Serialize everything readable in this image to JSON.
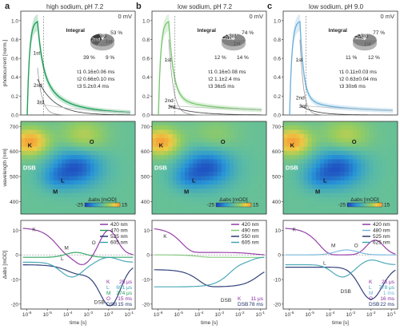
{
  "colors": {
    "green": "#1f9e58",
    "lightgreen": "#7dc873",
    "lightblue": "#6fb2dc",
    "purple": "#8a2aa0",
    "navy": "#1d2f6b",
    "teal": "#3aa0b0",
    "grey": "#606060"
  },
  "chart_data": [
    {
      "panel": "a",
      "title": "high sodium, pH 7.2",
      "voltage": "0 mV",
      "theme": "green",
      "top": {
        "type": "line",
        "ylabel": "photocurrent [norm.]",
        "yticks": [
          "0.0",
          "0.2",
          "0.4",
          "0.6",
          "0.8",
          "1.0"
        ],
        "ylim": [
          0,
          1.1
        ],
        "phase_labels": [
          "1st",
          "2nd",
          "3rd"
        ],
        "pie": {
          "title": "Integral",
          "values": [
            53,
            39,
            9
          ],
          "labels": [
            "1st",
            "2nd",
            "3rd"
          ],
          "value_labels": [
            "53 %",
            "39 %",
            "9 %"
          ],
          "colors": [
            "#8c8c8c",
            "#3c3c3c",
            "#d8d8d8"
          ]
        },
        "taus": [
          "τ1  0.16±0.06 ms",
          "τ2  0.66±0.10 ms",
          "τ3  5.2±0.4 ms"
        ]
      },
      "map": {
        "type": "heatmap",
        "ylabel": "wavelength [nm]",
        "yticks": [
          "400",
          "500",
          "600",
          "700"
        ],
        "ylim": [
          350,
          720
        ],
        "labels": [
          "K",
          "O",
          "DSB",
          "L",
          "M"
        ],
        "colorbar": {
          "label": "Δabs [mOD]",
          "min": "-25",
          "max": "15"
        }
      },
      "traces": {
        "type": "line",
        "xlabel": "time [s]",
        "ylabel": "Δabs [mOD]",
        "yticks": [
          "-20",
          "-10",
          "0",
          "10"
        ],
        "ylim": [
          -22,
          14
        ],
        "xticks": [
          "10-6",
          "10-5",
          "10-4",
          "10-3",
          "10-2",
          "10-1"
        ],
        "legend": [
          {
            "name": "420 nm",
            "color": "#8a2aa0"
          },
          {
            "name": "470 nm",
            "color": "#1f9e58"
          },
          {
            "name": "525 nm",
            "color": "#1d2f6b"
          },
          {
            "name": "605 nm",
            "color": "#3aa0b0"
          }
        ],
        "curve_labels": [
          "K",
          "M",
          "L",
          "O",
          "DSB"
        ],
        "time_constants": [
          {
            "name": "K",
            "value": "25 μs"
          },
          {
            "name": "L",
            "value": "691 μs"
          },
          {
            "name": "M",
            "value": "274 μs"
          },
          {
            "name": "O",
            "value": "15 ms"
          },
          {
            "name": "DSB",
            "value": "15 ms"
          }
        ]
      }
    },
    {
      "panel": "b",
      "title": "low sodium, pH 7.2",
      "voltage": "0 mV",
      "theme": "lightgreen",
      "top": {
        "type": "line",
        "ylabel": "",
        "yticks": [
          "0.0",
          "0.2",
          "0.4",
          "0.6",
          "0.8",
          "1.0"
        ],
        "ylim": [
          0,
          1.1
        ],
        "phase_labels": [
          "1st",
          "2nd",
          "3rd"
        ],
        "pie": {
          "title": "Integral",
          "values": [
            74,
            12,
            14
          ],
          "labels": [
            "1st",
            "2nd",
            "3rd"
          ],
          "value_labels": [
            "74 %",
            "12 %",
            "14 %"
          ],
          "colors": [
            "#8c8c8c",
            "#3c3c3c",
            "#d8d8d8"
          ]
        },
        "taus": [
          "τ1  0.16±0.08 ms",
          "τ2  1.1±2.4 ms",
          "τ3  36±5 ms"
        ]
      },
      "map": {
        "type": "heatmap",
        "ylabel": "",
        "yticks": [
          "400",
          "500",
          "600",
          "700"
        ],
        "ylim": [
          350,
          720
        ],
        "labels": [
          "K",
          "O",
          "DSB",
          "L",
          "M"
        ],
        "colorbar": {
          "label": "Δabs [mOD]",
          "min": "-25",
          "max": "15"
        }
      },
      "traces": {
        "type": "line",
        "xlabel": "time [s]",
        "ylabel": "",
        "yticks": [
          "-20",
          "-10",
          "0",
          "10"
        ],
        "ylim": [
          -22,
          14
        ],
        "xticks": [
          "10-6",
          "10-5",
          "10-4",
          "10-3",
          "10-2",
          "10-1"
        ],
        "legend": [
          {
            "name": "420 nm",
            "color": "#8a2aa0"
          },
          {
            "name": "490 nm",
            "color": "#7dc873"
          },
          {
            "name": "550 nm",
            "color": "#1d2f6b"
          },
          {
            "name": "605 nm",
            "color": "#3aa0b0"
          }
        ],
        "curve_labels": [
          "K",
          "DSB"
        ],
        "time_constants": [
          {
            "name": "K",
            "value": "11 μs"
          },
          {
            "name": "DSB",
            "value": "78 ms"
          }
        ]
      }
    },
    {
      "panel": "c",
      "title": "low sodium, pH 9.0",
      "voltage": "0 mV",
      "theme": "lightblue",
      "top": {
        "type": "line",
        "ylabel": "",
        "yticks": [
          "0.0",
          "0.2",
          "0.4",
          "0.6",
          "0.8",
          "1.0"
        ],
        "ylim": [
          0,
          1.1
        ],
        "phase_labels": [
          "1st",
          "2nd",
          "3rd"
        ],
        "pie": {
          "title": "Integral",
          "values": [
            77,
            11,
            12
          ],
          "labels": [
            "1st",
            "2nd",
            "3rd"
          ],
          "value_labels": [
            "77 %",
            "11 %",
            "12 %"
          ],
          "colors": [
            "#8c8c8c",
            "#3c3c3c",
            "#d8d8d8"
          ]
        },
        "taus": [
          "τ1  0.11±0.03 ms",
          "τ2  0.63±0.04 ms",
          "τ3  30±6 ms"
        ]
      },
      "map": {
        "type": "heatmap",
        "ylabel": "",
        "yticks": [
          "400",
          "500",
          "600",
          "700"
        ],
        "ylim": [
          350,
          720
        ],
        "labels": [
          "K",
          "O",
          "DSB",
          "L",
          "M"
        ],
        "colorbar": {
          "label": "Δabs [mOD]",
          "min": "-25",
          "max": "15"
        }
      },
      "traces": {
        "type": "line",
        "xlabel": "time [s]",
        "ylabel": "",
        "yticks": [
          "-20",
          "-10",
          "0",
          "10"
        ],
        "ylim": [
          -22,
          14
        ],
        "xticks": [
          "10-6",
          "10-5",
          "10-4",
          "10-3",
          "10-2",
          "10-1"
        ],
        "legend": [
          {
            "name": "420 nm",
            "color": "#8a2aa0"
          },
          {
            "name": "480 nm",
            "color": "#6fb2dc"
          },
          {
            "name": "525 nm",
            "color": "#1d2f6b"
          },
          {
            "name": "625 nm",
            "color": "#3aa0b0"
          }
        ],
        "curve_labels": [
          "K",
          "M",
          "O",
          "L",
          "DSB"
        ],
        "time_constants": [
          {
            "name": "K",
            "value": "25 μs"
          },
          {
            "name": "L",
            "value": "778 μs"
          },
          {
            "name": "M",
            "value": "1 ms"
          },
          {
            "name": "O",
            "value": "16 ms"
          },
          {
            "name": "DSB",
            "value": "22 ms"
          }
        ]
      }
    }
  ]
}
